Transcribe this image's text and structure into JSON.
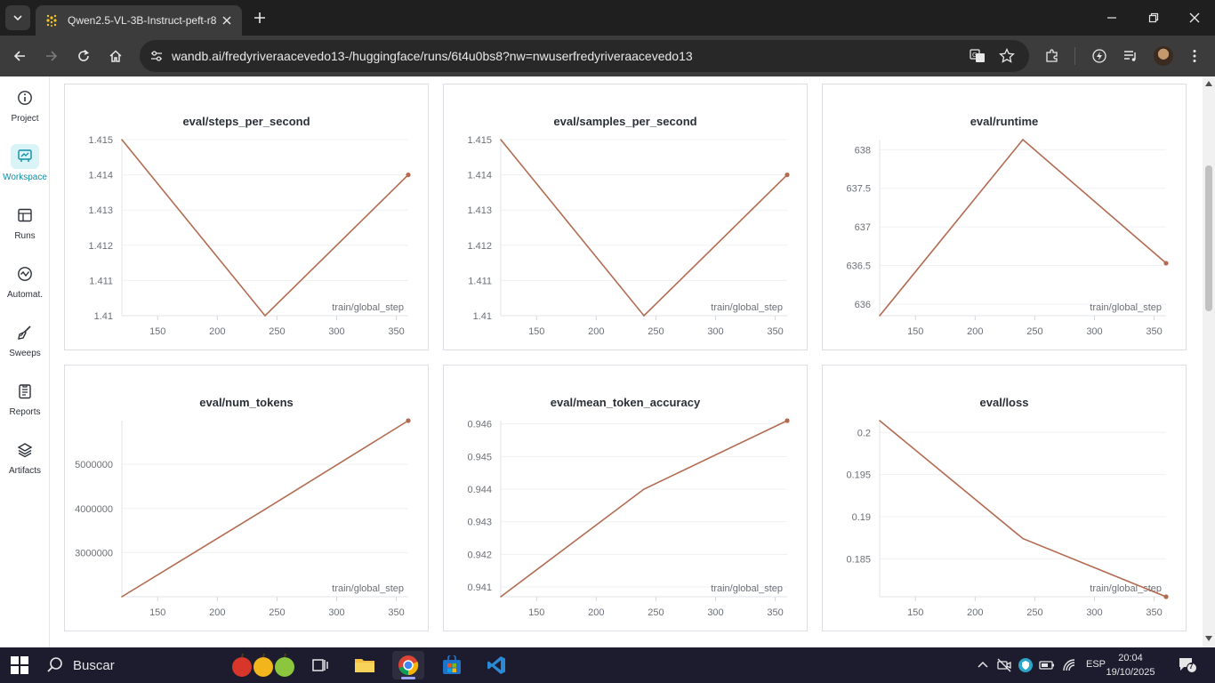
{
  "browser": {
    "tab_title": "Qwen2.5-VL-3B-Instruct-peft-r8",
    "url": "wandb.ai/fredyriveraacevedo13-/huggingface/runs/6t4u0bs8?nw=nwuserfredyriveraacevedo13"
  },
  "sidebar": {
    "items": [
      {
        "label": "Project",
        "icon": "info-icon"
      },
      {
        "label": "Workspace",
        "icon": "workspace-icon",
        "active": true
      },
      {
        "label": "Runs",
        "icon": "table-icon"
      },
      {
        "label": "Automat.",
        "icon": "automation-icon"
      },
      {
        "label": "Sweeps",
        "icon": "broom-icon"
      },
      {
        "label": "Reports",
        "icon": "report-icon"
      },
      {
        "label": "Artifacts",
        "icon": "layers-icon"
      }
    ]
  },
  "colors": {
    "line": "#b26b50",
    "active_accent": "#0f8ea6",
    "grid": "#eef0f3",
    "tick_text": "#6b6f76"
  },
  "chart_data": [
    {
      "type": "line",
      "title": "eval/steps_per_second",
      "xlabel": "train/global_step",
      "x": [
        120,
        240,
        360
      ],
      "y": [
        1.415,
        1.41,
        1.414
      ],
      "xlim": [
        120,
        360
      ],
      "ylim": [
        1.41,
        1.415
      ],
      "xticks": [
        150,
        200,
        250,
        300,
        350
      ],
      "yticks": [
        1.41,
        1.411,
        1.412,
        1.413,
        1.414,
        1.415
      ],
      "ytick_labels": [
        "1.41",
        "1.411",
        "1.412",
        "1.413",
        "1.414",
        "1.415"
      ]
    },
    {
      "type": "line",
      "title": "eval/samples_per_second",
      "xlabel": "train/global_step",
      "x": [
        120,
        240,
        360
      ],
      "y": [
        1.415,
        1.41,
        1.414
      ],
      "xlim": [
        120,
        360
      ],
      "ylim": [
        1.41,
        1.415
      ],
      "xticks": [
        150,
        200,
        250,
        300,
        350
      ],
      "yticks": [
        1.41,
        1.411,
        1.412,
        1.413,
        1.414,
        1.415
      ],
      "ytick_labels": [
        "1.41",
        "1.411",
        "1.412",
        "1.413",
        "1.414",
        "1.415"
      ]
    },
    {
      "type": "line",
      "title": "eval/runtime",
      "xlabel": "train/global_step",
      "x": [
        120,
        240,
        360
      ],
      "y": [
        635.85,
        638.13,
        636.53
      ],
      "xlim": [
        120,
        360
      ],
      "ylim": [
        635.85,
        638.13
      ],
      "xticks": [
        150,
        200,
        250,
        300,
        350
      ],
      "yticks": [
        636,
        636.5,
        637,
        637.5,
        638
      ],
      "ytick_labels": [
        "636",
        "636.5",
        "637",
        "637.5",
        "638"
      ]
    },
    {
      "type": "line",
      "title": "eval/num_tokens",
      "xlabel": "train/global_step",
      "x": [
        120,
        240,
        360
      ],
      "y": [
        2000000,
        3980000,
        5990000
      ],
      "xlim": [
        120,
        360
      ],
      "ylim": [
        2000000,
        5990000
      ],
      "xticks": [
        150,
        200,
        250,
        300,
        350
      ],
      "yticks": [
        3000000,
        4000000,
        5000000
      ],
      "ytick_labels": [
        "3000000",
        "4000000",
        "5000000"
      ]
    },
    {
      "type": "line",
      "title": "eval/mean_token_accuracy",
      "xlabel": "train/global_step",
      "x": [
        120,
        240,
        360
      ],
      "y": [
        0.9407,
        0.944,
        0.9461
      ],
      "xlim": [
        120,
        360
      ],
      "ylim": [
        0.9407,
        0.9461
      ],
      "xticks": [
        150,
        200,
        250,
        300,
        350
      ],
      "yticks": [
        0.941,
        0.942,
        0.943,
        0.944,
        0.945,
        0.946
      ],
      "ytick_labels": [
        "0.941",
        "0.942",
        "0.943",
        "0.944",
        "0.945",
        "0.946"
      ]
    },
    {
      "type": "line",
      "title": "eval/loss",
      "xlabel": "train/global_step",
      "x": [
        120,
        240,
        360
      ],
      "y": [
        0.2014,
        0.1874,
        0.1805
      ],
      "xlim": [
        120,
        360
      ],
      "ylim": [
        0.1805,
        0.2014
      ],
      "xticks": [
        150,
        200,
        250,
        300,
        350
      ],
      "yticks": [
        0.185,
        0.19,
        0.195,
        0.2
      ],
      "ytick_labels": [
        "0.185",
        "0.19",
        "0.195",
        "0.2"
      ]
    }
  ],
  "taskbar": {
    "search_label": "Buscar",
    "language": "ESP",
    "time": "20:04",
    "date": "19/10/2025",
    "notification_count": "7"
  }
}
